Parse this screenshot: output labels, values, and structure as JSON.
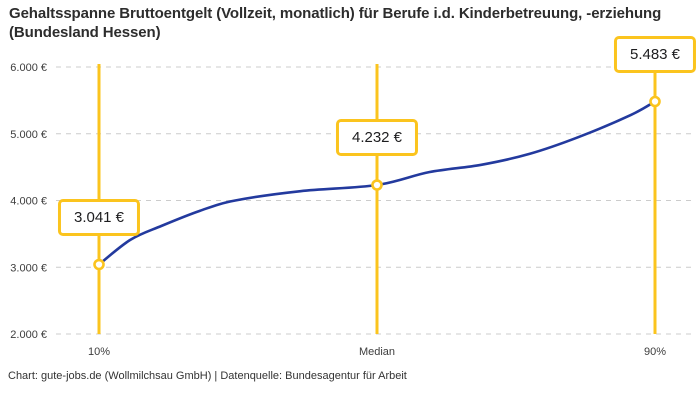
{
  "title": "Gehaltsspanne Bruttoentgelt (Vollzeit, monatlich) für Berufe i.d. Kinderbetreuung, -erziehung (Bundesland Hessen)",
  "footer": {
    "credit": "Chart: gute-jobs.de (Wollmilchsau GmbH) | Datenquelle: Bundesagentur für Arbeit"
  },
  "colors": {
    "accent_yellow": "#FBC41E",
    "line_blue": "#233A9E",
    "grid_gray": "#CCCCCC",
    "axis_text": "#3d3d3d"
  },
  "chart_data": {
    "type": "line",
    "title": "Gehaltsspanne Bruttoentgelt (Vollzeit, monatlich) für Berufe i.d. Kinderbetreuung, -erziehung (Bundesland Hessen)",
    "xlabel": "",
    "ylabel": "",
    "ylim": [
      2000,
      6000
    ],
    "grid": "dashed-horizontal",
    "legend": "none",
    "y_ticks": [
      {
        "value": 2000,
        "label": "2.000 €"
      },
      {
        "value": 3000,
        "label": "3.000 €"
      },
      {
        "value": 4000,
        "label": "4.000 €"
      },
      {
        "value": 5000,
        "label": "5.000 €"
      },
      {
        "value": 6000,
        "label": "6.000 €"
      }
    ],
    "points": [
      {
        "id": "p10",
        "x_label": "10%",
        "percentile": 10,
        "value": 3041,
        "value_label": "3.041 €"
      },
      {
        "id": "median",
        "x_label": "Median",
        "percentile": 50,
        "value": 4232,
        "value_label": "4.232 €"
      },
      {
        "id": "p90",
        "x_label": "90%",
        "percentile": 90,
        "value": 5483,
        "value_label": "5.483 €"
      }
    ],
    "curve_samples": [
      [
        10,
        3041
      ],
      [
        14.5,
        3410
      ],
      [
        19,
        3620
      ],
      [
        24.5,
        3845
      ],
      [
        29.6,
        4000
      ],
      [
        39,
        4140
      ],
      [
        50,
        4232
      ],
      [
        57.5,
        4425
      ],
      [
        65,
        4535
      ],
      [
        72,
        4700
      ],
      [
        79,
        4950
      ],
      [
        86.5,
        5280
      ],
      [
        90,
        5483
      ]
    ]
  }
}
